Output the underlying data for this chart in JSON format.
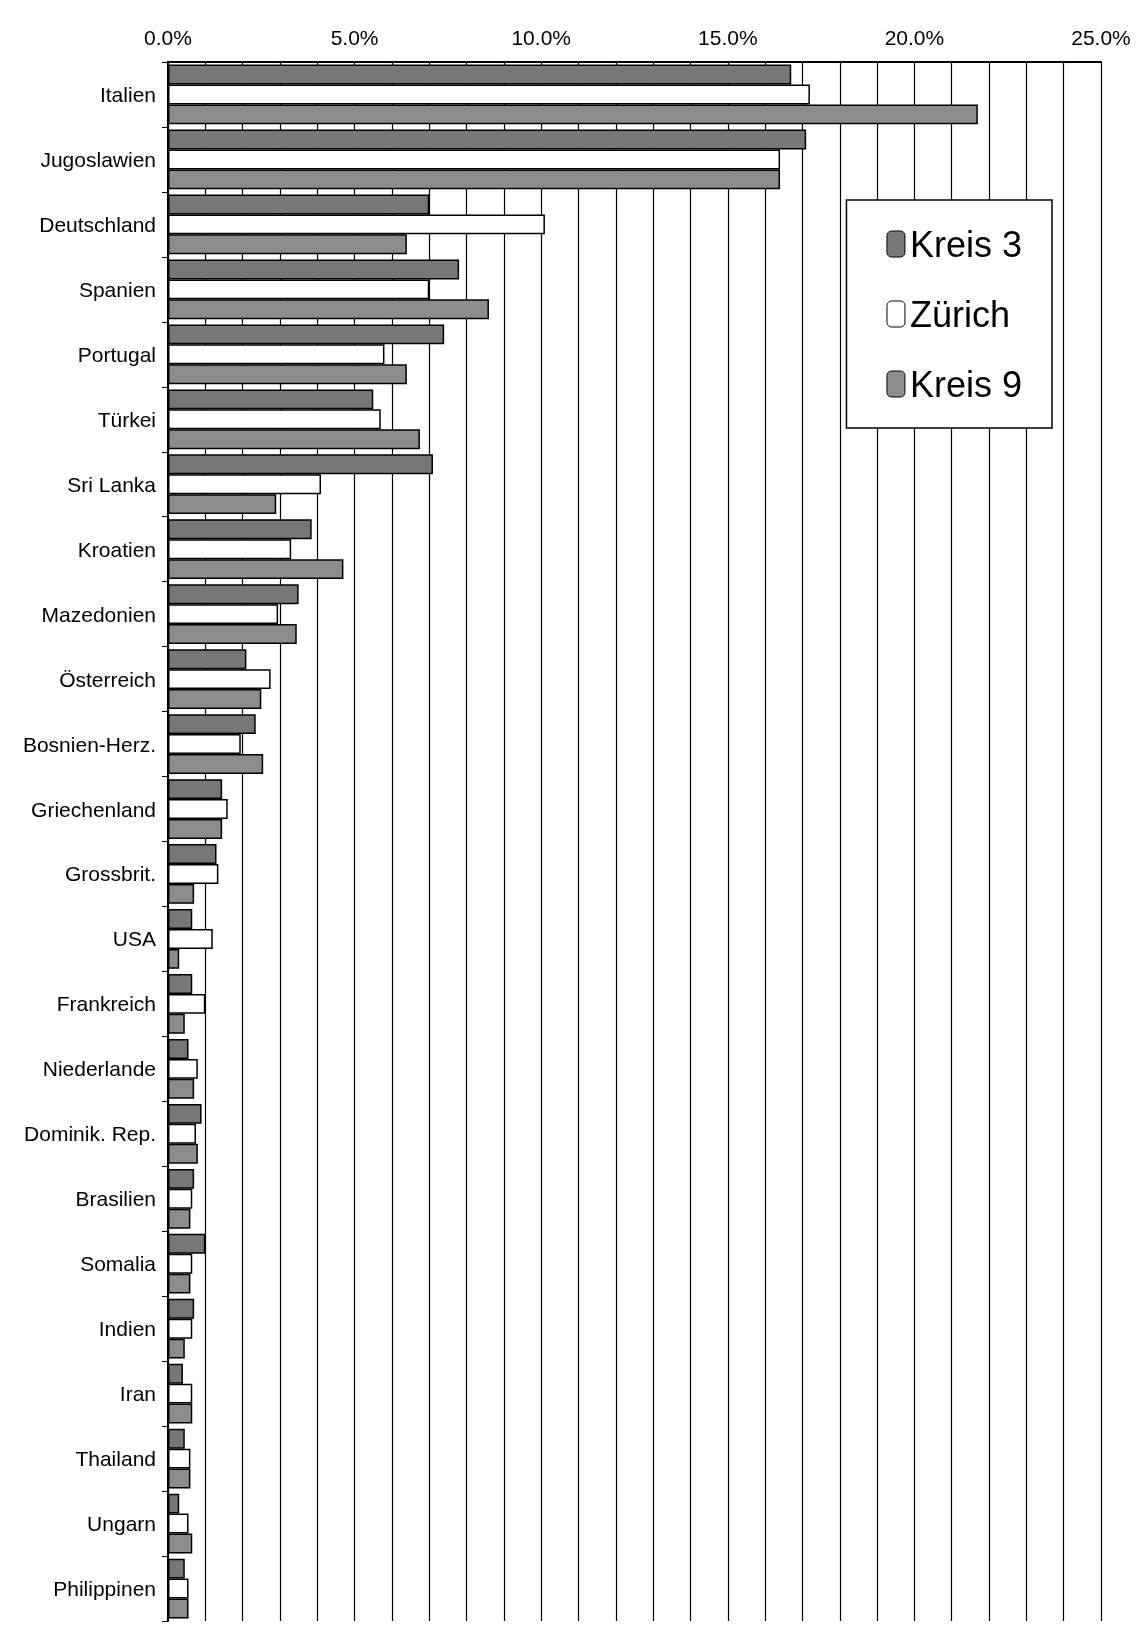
{
  "chart_data": {
    "type": "bar",
    "orientation": "horizontal",
    "categories": [
      "Italien",
      "Jugoslawien",
      "Deutschland",
      "Spanien",
      "Portugal",
      "Türkei",
      "Sri Lanka",
      "Kroatien",
      "Mazedonien",
      "Österreich",
      "Bosnien-Herz.",
      "Griechenland",
      "Grossbrit.",
      "USA",
      "Frankreich",
      "Niederlande",
      "Dominik. Rep.",
      "Brasilien",
      "Somalia",
      "Indien",
      "Iran",
      "Thailand",
      "Ungarn",
      "Philippinen"
    ],
    "series": [
      {
        "name": "Kreis 3",
        "color": "#777777",
        "values": [
          16.7,
          17.1,
          7.0,
          7.8,
          7.4,
          5.5,
          7.1,
          3.85,
          3.5,
          2.1,
          2.35,
          1.45,
          1.3,
          0.65,
          0.65,
          0.55,
          0.9,
          0.7,
          1.0,
          0.7,
          0.4,
          0.45,
          0.3,
          0.45
        ]
      },
      {
        "name": "Zürich",
        "color": "#ffffff",
        "values": [
          17.2,
          16.4,
          10.1,
          7.0,
          5.8,
          5.7,
          4.1,
          3.3,
          2.95,
          2.75,
          1.95,
          1.6,
          1.35,
          1.2,
          1.0,
          0.8,
          0.75,
          0.65,
          0.65,
          0.65,
          0.65,
          0.6,
          0.55,
          0.55
        ]
      },
      {
        "name": "Kreis 9",
        "color": "#8c8c8c",
        "values": [
          21.7,
          16.4,
          6.4,
          8.6,
          6.4,
          6.75,
          2.9,
          4.7,
          3.45,
          2.5,
          2.55,
          1.45,
          0.7,
          0.3,
          0.45,
          0.7,
          0.8,
          0.6,
          0.6,
          0.45,
          0.65,
          0.6,
          0.65,
          0.55
        ]
      }
    ],
    "xlim": [
      0,
      25
    ],
    "xticks": [
      {
        "value": 0,
        "label": "0.0%"
      },
      {
        "value": 1,
        "label": null
      },
      {
        "value": 2,
        "label": null
      },
      {
        "value": 3,
        "label": null
      },
      {
        "value": 4,
        "label": null
      },
      {
        "value": 5,
        "label": "5.0%"
      },
      {
        "value": 6,
        "label": null
      },
      {
        "value": 7,
        "label": null
      },
      {
        "value": 8,
        "label": null
      },
      {
        "value": 9,
        "label": null
      },
      {
        "value": 10,
        "label": "10.0%"
      },
      {
        "value": 11,
        "label": null
      },
      {
        "value": 12,
        "label": null
      },
      {
        "value": 13,
        "label": null
      },
      {
        "value": 14,
        "label": null
      },
      {
        "value": 15,
        "label": "15.0%"
      },
      {
        "value": 16,
        "label": null
      },
      {
        "value": 17,
        "label": null
      },
      {
        "value": 18,
        "label": null
      },
      {
        "value": 19,
        "label": null
      },
      {
        "value": 20,
        "label": "20.0%"
      },
      {
        "value": 21,
        "label": null
      },
      {
        "value": 22,
        "label": null
      },
      {
        "value": 23,
        "label": null
      },
      {
        "value": 24,
        "label": null
      },
      {
        "value": 25,
        "label": "25.0%"
      }
    ],
    "grid": "x",
    "legend": "top right"
  }
}
